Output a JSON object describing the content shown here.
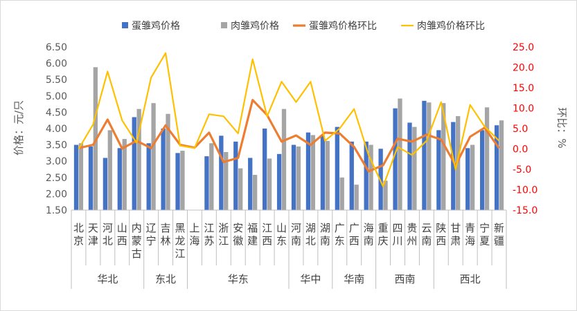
{
  "chart_data": {
    "type": "bar",
    "legend_position": "top",
    "ylabel": "价格：元/只",
    "y2label": "环比：%",
    "ylim": [
      1.5,
      6.5
    ],
    "y_ticks": [
      "1.50",
      "2.00",
      "2.50",
      "3.00",
      "3.50",
      "4.00",
      "4.50",
      "5.00",
      "5.50",
      "6.00",
      "6.50"
    ],
    "y2lim": [
      -15,
      25
    ],
    "y2_ticks": [
      "-15.0",
      "-10.0",
      "-5.0",
      "0.0",
      "5.0",
      "10.0",
      "15.0",
      "20.0",
      "25.0"
    ],
    "grid": false,
    "categories": [
      "北京",
      "天津",
      "河北",
      "山西",
      "内蒙古",
      "辽宁",
      "吉林",
      "黑龙江",
      "上海",
      "江苏",
      "浙江",
      "安徽",
      "福建",
      "江西",
      "山东",
      "河南",
      "湖北",
      "湖南",
      "广东",
      "广西",
      "海南",
      "重庆",
      "四川",
      "贵州",
      "云南",
      "陕西",
      "甘肃",
      "青海",
      "宁夏",
      "新疆"
    ],
    "groups": [
      {
        "name": "华北",
        "count": 5
      },
      {
        "name": "东北",
        "count": 3
      },
      {
        "name": "华东",
        "count": 7
      },
      {
        "name": "华中",
        "count": 3
      },
      {
        "name": "华南",
        "count": 3
      },
      {
        "name": "西南",
        "count": 4
      },
      {
        "name": "西北",
        "count": 5
      }
    ],
    "series": [
      {
        "name": "蛋雏鸡价格",
        "kind": "bar",
        "axis": "left",
        "color": "#4472c4",
        "values": [
          3.5,
          3.45,
          3.1,
          3.4,
          4.35,
          3.55,
          4.0,
          3.25,
          null,
          3.15,
          3.78,
          3.6,
          3.1,
          4.0,
          3.22,
          3.5,
          3.88,
          3.78,
          4.05,
          3.6,
          3.6,
          3.38,
          4.62,
          4.18,
          4.85,
          3.95,
          4.2,
          3.4,
          3.95,
          4.1
        ]
      },
      {
        "name": "肉雏鸡价格",
        "kind": "bar",
        "axis": "left",
        "color": "#a5a5a5",
        "values": [
          3.55,
          5.88,
          3.95,
          3.68,
          4.6,
          4.78,
          4.45,
          3.32,
          null,
          3.55,
          3.28,
          2.78,
          2.58,
          3.08,
          4.6,
          3.45,
          3.8,
          3.62,
          2.5,
          2.28,
          3.5,
          2.4,
          4.92,
          4.05,
          4.8,
          4.78,
          4.38,
          3.5,
          4.65,
          4.25
        ]
      },
      {
        "name": "蛋雏鸡价格环比",
        "kind": "line",
        "axis": "right",
        "color": "#ed7d31",
        "values": [
          0.2,
          1.0,
          7.2,
          0.1,
          2.0,
          0.2,
          5.8,
          1.0,
          0.3,
          4.0,
          -3.2,
          -2.2,
          12.0,
          8.3,
          1.8,
          3.3,
          1.0,
          4.0,
          3.8,
          0.5,
          -5.5,
          -4.0,
          2.5,
          1.8,
          3.5,
          2.3,
          -4.0,
          3.0,
          5.2,
          0.2
        ]
      },
      {
        "name": "肉雏鸡价格环比",
        "kind": "line",
        "axis": "right",
        "color": "#ffc000",
        "values": [
          0.0,
          6.0,
          19.0,
          7.0,
          1.5,
          17.5,
          23.5,
          0.8,
          0.2,
          8.5,
          8.0,
          3.8,
          22.0,
          8.0,
          16.5,
          11.5,
          16.5,
          2.0,
          5.0,
          9.8,
          -1.5,
          -9.2,
          0.5,
          -1.5,
          2.0,
          11.5,
          -5.0,
          10.8,
          5.5,
          2.0
        ]
      }
    ]
  }
}
